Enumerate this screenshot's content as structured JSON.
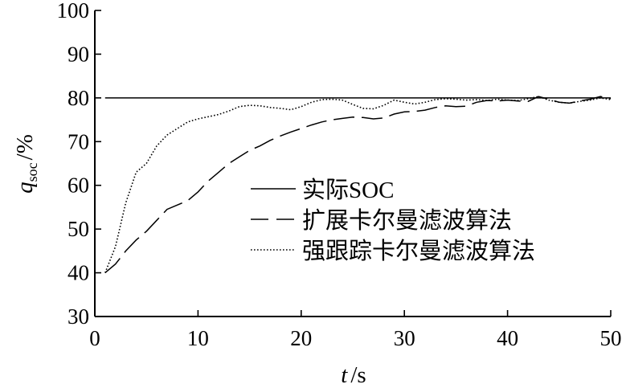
{
  "chart_data": {
    "type": "line",
    "title": "",
    "xlabel": {
      "var": "t",
      "unit": "/s"
    },
    "ylabel": {
      "var": "q",
      "sub": "SOC",
      "unit": "/%"
    },
    "xlim": [
      0,
      50
    ],
    "ylim": [
      30,
      100
    ],
    "xticks": [
      "0",
      "10",
      "20",
      "30",
      "40",
      "50"
    ],
    "yticks": [
      "30",
      "40",
      "50",
      "60",
      "70",
      "80",
      "90",
      "100"
    ],
    "grid": false,
    "legend_position": "center-right",
    "series": [
      {
        "name": "实际SOC",
        "style": "solid",
        "color": "#000000",
        "x": [
          1,
          50
        ],
        "y": [
          80,
          80
        ]
      },
      {
        "name": "扩展卡尔曼滤波算法",
        "style": "dashed",
        "color": "#000000",
        "x": [
          1,
          2,
          3,
          4,
          5,
          6,
          7,
          8,
          9,
          10,
          11,
          12,
          13,
          14,
          15,
          16,
          17,
          18,
          19,
          20,
          21,
          22,
          23,
          24,
          25,
          26,
          27,
          28,
          29,
          30,
          31,
          32,
          33,
          34,
          35,
          36,
          37,
          38,
          39,
          40,
          41,
          42,
          43,
          44,
          45,
          46,
          47,
          48,
          49,
          50
        ],
        "y": [
          40,
          42,
          45,
          47.5,
          49.5,
          52,
          54.5,
          55.5,
          56.5,
          58.5,
          61,
          63,
          65,
          66.5,
          68,
          69,
          70.3,
          71.3,
          72.2,
          73,
          73.8,
          74.5,
          75,
          75.3,
          75.6,
          75.5,
          75.2,
          75.4,
          76.3,
          76.8,
          76.9,
          77.2,
          77.8,
          78.2,
          78.0,
          78.1,
          79.0,
          79.4,
          79.3,
          79.5,
          79.3,
          79.2,
          80.3,
          79.7,
          79.0,
          78.8,
          79.3,
          79.7,
          80.3,
          79.8
        ]
      },
      {
        "name": "强跟踪卡尔曼滤波算法",
        "style": "dotted",
        "color": "#000000",
        "x": [
          1,
          2,
          3,
          4,
          5,
          6,
          7,
          8,
          9,
          10,
          11,
          12,
          13,
          14,
          15,
          16,
          17,
          18,
          19,
          20,
          21,
          22,
          23,
          24,
          25,
          26,
          27,
          28,
          29,
          30,
          31,
          32,
          33,
          34,
          35,
          36,
          37,
          38,
          39,
          40,
          41,
          42,
          43,
          44,
          45,
          46,
          47,
          48,
          49,
          50
        ],
        "y": [
          40,
          46,
          56,
          63,
          65,
          69,
          71.5,
          73,
          74.5,
          75.2,
          75.7,
          76.2,
          77,
          78,
          78.3,
          78.2,
          77.8,
          77.6,
          77.3,
          78.0,
          79.0,
          79.6,
          79.7,
          79.5,
          78.5,
          77.6,
          77.5,
          78.3,
          79.5,
          79.0,
          78.6,
          79.0,
          79.6,
          79.8,
          79.7,
          79.5,
          79.6,
          79.4,
          79.7,
          79.5,
          79.4,
          79.8,
          80.3,
          79.5,
          79.0,
          78.8,
          79.2,
          79.5,
          80.0,
          79.6
        ]
      }
    ]
  }
}
